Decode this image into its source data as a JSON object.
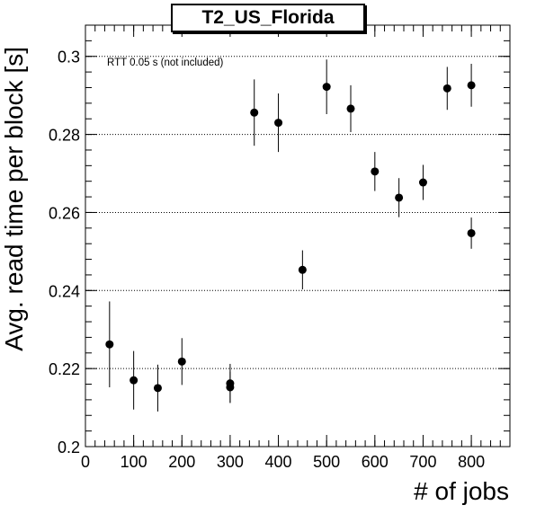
{
  "chart_data": {
    "type": "scatter",
    "title": "T2_US_Florida",
    "xlabel": "# of jobs",
    "ylabel": "Avg. read time per block [s]",
    "annotation": "RTT 0.05 s (not included)",
    "xlim": [
      0,
      880
    ],
    "ylim": [
      0.2,
      0.308
    ],
    "x_ticks": [
      0,
      100,
      200,
      300,
      400,
      500,
      600,
      700,
      800
    ],
    "y_ticks": [
      0.2,
      0.22,
      0.24,
      0.26,
      0.28,
      0.3
    ],
    "y_tick_labels": [
      "0.2",
      "0.22",
      "0.24",
      "0.26",
      "0.28",
      "0.3"
    ],
    "grid": "horizontal dotted",
    "points": [
      {
        "x": 50,
        "y": 0.2262,
        "err": 0.011
      },
      {
        "x": 100,
        "y": 0.217,
        "err": 0.0075
      },
      {
        "x": 150,
        "y": 0.215,
        "err": 0.006
      },
      {
        "x": 200,
        "y": 0.2218,
        "err": 0.006
      },
      {
        "x": 300,
        "y": 0.2162,
        "err": 0.005
      },
      {
        "x": 300,
        "y": 0.2152,
        "err": 0.004
      },
      {
        "x": 350,
        "y": 0.2856,
        "err": 0.0085
      },
      {
        "x": 400,
        "y": 0.283,
        "err": 0.0075
      },
      {
        "x": 450,
        "y": 0.2453,
        "err": 0.005
      },
      {
        "x": 500,
        "y": 0.2922,
        "err": 0.007
      },
      {
        "x": 550,
        "y": 0.2866,
        "err": 0.006
      },
      {
        "x": 600,
        "y": 0.2705,
        "err": 0.005
      },
      {
        "x": 650,
        "y": 0.2638,
        "err": 0.005
      },
      {
        "x": 700,
        "y": 0.2677,
        "err": 0.0045
      },
      {
        "x": 750,
        "y": 0.2918,
        "err": 0.0055
      },
      {
        "x": 800,
        "y": 0.2926,
        "err": 0.0055
      },
      {
        "x": 800,
        "y": 0.2547,
        "err": 0.004
      }
    ]
  }
}
